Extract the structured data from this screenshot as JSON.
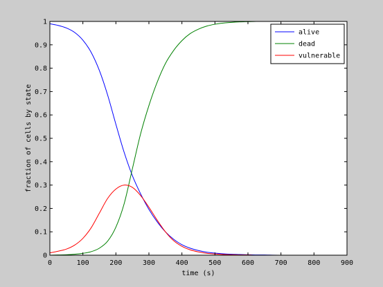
{
  "chart_data": {
    "type": "line",
    "title": "",
    "xlabel": "time (s)",
    "ylabel": "fraction of cells by state",
    "xlim": [
      0,
      900
    ],
    "ylim": [
      0,
      1
    ],
    "xticks": [
      0,
      100,
      200,
      300,
      400,
      500,
      600,
      700,
      800,
      900
    ],
    "xtick_labels": [
      "0",
      "100",
      "200",
      "300",
      "400",
      "500",
      "600",
      "700",
      "800",
      "900"
    ],
    "yticks": [
      0,
      0.1,
      0.2,
      0.3,
      0.4,
      0.5,
      0.6,
      0.7,
      0.8,
      0.9,
      1
    ],
    "ytick_labels": [
      "0",
      "0.1",
      "0.2",
      "0.3",
      "0.4",
      "0.5",
      "0.6",
      "0.7",
      "0.8",
      "0.9",
      "1"
    ],
    "grid": false,
    "legend_position": "top-right",
    "x": [
      0,
      25,
      50,
      75,
      100,
      125,
      150,
      175,
      200,
      225,
      250,
      275,
      300,
      325,
      350,
      375,
      400,
      425,
      450,
      475,
      500,
      525,
      550,
      575,
      600,
      625,
      650,
      700,
      800,
      900
    ],
    "series": [
      {
        "name": "alive",
        "color": "#0000ff",
        "values": [
          0.99,
          0.983,
          0.972,
          0.953,
          0.92,
          0.868,
          0.79,
          0.685,
          0.56,
          0.44,
          0.34,
          0.262,
          0.196,
          0.143,
          0.1,
          0.068,
          0.045,
          0.03,
          0.02,
          0.013,
          0.009,
          0.006,
          0.004,
          0.003,
          0.002,
          0.001,
          0.001,
          0.0,
          0.0,
          0.0
        ]
      },
      {
        "name": "dead",
        "color": "#008000",
        "values": [
          0.0,
          0.001,
          0.002,
          0.004,
          0.008,
          0.015,
          0.03,
          0.06,
          0.12,
          0.22,
          0.37,
          0.52,
          0.64,
          0.74,
          0.82,
          0.876,
          0.918,
          0.948,
          0.967,
          0.98,
          0.988,
          0.993,
          0.996,
          0.998,
          0.999,
          1.0,
          1.0,
          1.0,
          1.0,
          1.0
        ]
      },
      {
        "name": "vulnerable",
        "color": "#ff0000",
        "values": [
          0.01,
          0.017,
          0.026,
          0.043,
          0.072,
          0.117,
          0.18,
          0.243,
          0.283,
          0.3,
          0.29,
          0.255,
          0.205,
          0.15,
          0.1,
          0.062,
          0.038,
          0.023,
          0.014,
          0.008,
          0.005,
          0.003,
          0.002,
          0.001,
          0.001,
          0.0,
          0.0,
          0.0,
          0.0,
          0.0
        ]
      }
    ]
  }
}
